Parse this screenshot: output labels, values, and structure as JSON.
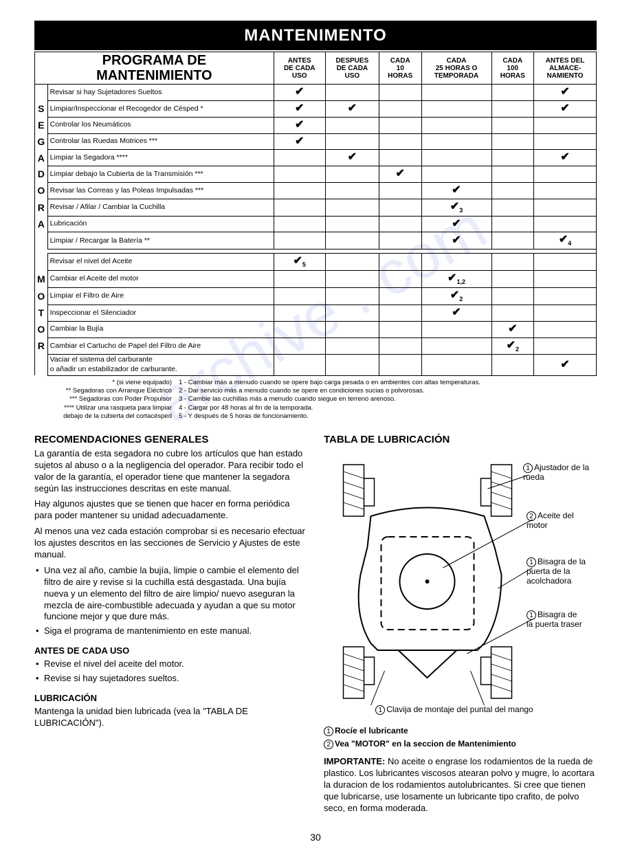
{
  "banner": "MANTENIMENTO",
  "sched": {
    "title_l1": "PROGRAMA DE",
    "title_l2": "MANTENIMIENTO",
    "cols": [
      "ANTES\nDE CADA\nUSO",
      "DESPUES\nDE CADA\nUSO",
      "CADA\n10\nHORAS",
      "CADA\n25 HORAS O\nTEMPORADA",
      "CADA\n100\nHORAS",
      "ANTES DEL\nALMACE-\nNAMIENTO"
    ],
    "side1": [
      "S",
      "E",
      "G",
      "A",
      "D",
      "O",
      "R",
      "A"
    ],
    "side2": [
      "M",
      "O",
      "T",
      "O",
      "R"
    ],
    "rows1": [
      {
        "task": "Revisar si hay Sujetadores Sueltos",
        "c": [
          "✔",
          "",
          "",
          "",
          "",
          "✔"
        ]
      },
      {
        "task": "Limpiar/Inspeccionar el Recogedor de Césped *",
        "c": [
          "✔",
          "✔",
          "",
          "",
          "",
          "✔"
        ]
      },
      {
        "task": "Controlar los Neumáticos",
        "c": [
          "✔",
          "",
          "",
          "",
          "",
          ""
        ]
      },
      {
        "task": "Controlar las Ruedas Motrices ***",
        "c": [
          "✔",
          "",
          "",
          "",
          "",
          ""
        ]
      },
      {
        "task": "Limpiar la Segadora ****",
        "c": [
          "",
          "✔",
          "",
          "",
          "",
          "✔"
        ]
      },
      {
        "task": "Limpiar debajo la Cubierta de la Transmisión ***",
        "c": [
          "",
          "",
          "✔",
          "",
          "",
          ""
        ]
      },
      {
        "task": "Revisar las Correas y las Poleas Impulsadas ***",
        "c": [
          "",
          "",
          "",
          "✔",
          "",
          ""
        ]
      },
      {
        "task": "Revisar / Afilar / Cambiar la Cuchilla",
        "c": [
          "",
          "",
          "",
          "✔₃",
          "",
          ""
        ]
      },
      {
        "task": "Lubricación",
        "c": [
          "",
          "",
          "",
          "✔",
          "",
          ""
        ]
      },
      {
        "task": "Limpiar / Recargar la Batería **",
        "c": [
          "",
          "",
          "",
          "✔",
          "",
          "✔₄"
        ]
      }
    ],
    "rows2": [
      {
        "task": "Revisar el nivel del Aceite",
        "c": [
          "✔₅",
          "",
          "",
          "",
          "",
          ""
        ]
      },
      {
        "task": "Cambiar el Aceite del motor",
        "c": [
          "",
          "",
          "",
          "✔₁,₂",
          "",
          ""
        ]
      },
      {
        "task": "Limpiar el Filtro de Aire",
        "c": [
          "",
          "",
          "",
          "✔₂",
          "",
          ""
        ]
      },
      {
        "task": "Inspeccionar el Silenciador",
        "c": [
          "",
          "",
          "",
          "✔",
          "",
          ""
        ]
      },
      {
        "task": "Cambiar la Bujía",
        "c": [
          "",
          "",
          "",
          "",
          "✔",
          ""
        ]
      },
      {
        "task": "Cambiar el Cartucho de Papel del Filtro de Aire",
        "c": [
          "",
          "",
          "",
          "",
          "✔₂",
          ""
        ]
      },
      {
        "task": "Vaciar el sistema del carburante\no añadir un estabilizador de carburante.",
        "c": [
          "",
          "",
          "",
          "",
          "",
          "✔"
        ]
      }
    ]
  },
  "footnotes": {
    "left": [
      "* (si viene equipado)",
      "** Segadoras con Arranque Eléctrico",
      "*** Segadoras con Poder Propulsor",
      "**** Utilizar una rasqueta para limpiar",
      "debajo de la cubierta del cortacésped"
    ],
    "right": [
      "1 - Cambiar más a menudo cuando se opere bajo carga pesada o en ambientes con altas temperaturas.",
      "2 - Dar servicio más a menudo cuando se opere en condiciones sucias o polvorosas.",
      "3 - Cambie las cuchillas más a menudo cuando siegue en terreno arenoso.",
      "4 - Cargar por 48 horas al fin de la temporada.",
      "5 - Y después de 5 horas de funcionamiento."
    ]
  },
  "rec": {
    "title": "RECOMENDACIONES GENERALES",
    "p1": "La garantía de esta segadora no cubre los artículos que han estado sujetos al abuso o a la negligencia del operador. Para recibir todo el valor de la garantía, el operador tiene que mantener la segadora según las instrucciones descritas en este manual.",
    "p2": "Hay algunos ajustes que se tienen que hacer en forma periódica para poder mantener su unidad adecuadamente.",
    "p3": "Al menos una vez cada estación comprobar si es necesario efectuar los ajustes descritos en las secciones de Servicio y Ajustes de este manual.",
    "b1": "Una vez al año, cambie la bujía, limpie o cambie el elemento del filtro de aire y revise si la cuchilla está desgastada. Una bujía nueva y un elemento del filtro de aire limpio/ nuevo aseguran la mezcla de aire-combustible adecuada y ayudan a que su motor funcione mejor y que dure más.",
    "b2": "Siga el programa de mantenimiento en este manual."
  },
  "antes": {
    "title": "ANTES DE CADA USO",
    "b1": "Revise el nivel del aceite del motor.",
    "b2": "Revise si hay sujetadores sueltos."
  },
  "lub": {
    "title": "LUBRICACIÓN",
    "p1": "Mantenga la unidad bien lubricada (vea la \"TABLA DE LUBRICACIÓN\")."
  },
  "tabla": {
    "title": "TABLA DE LUBRICACIÓN",
    "c1": "Ajustador de la rueda",
    "c2": "Aceite del motor",
    "c3": "Bisagra de la puerta de la acolchadora",
    "c4": "Bisagra de la puerta traser",
    "c5": "Clavija de montaje del puntal del mango",
    "leg1": "Rocíe el lubricante",
    "leg2": "Vea \"MOTOR\" en la seccion de Mantenimiento",
    "imp_label": "IMPORTANTE:",
    "imp": "No aceite o engrase los rodamientos de la rueda de plastico. Los lubricantes viscosos atearan polvo y mugre, lo acortara la duracion de los rodamientos autolubricantes. Si cree que tienen que lubricarse, use losamente un lubricante tipo crafito, de polvo seco, en forma moderada."
  },
  "page": "30",
  "watermark": "archive . com"
}
